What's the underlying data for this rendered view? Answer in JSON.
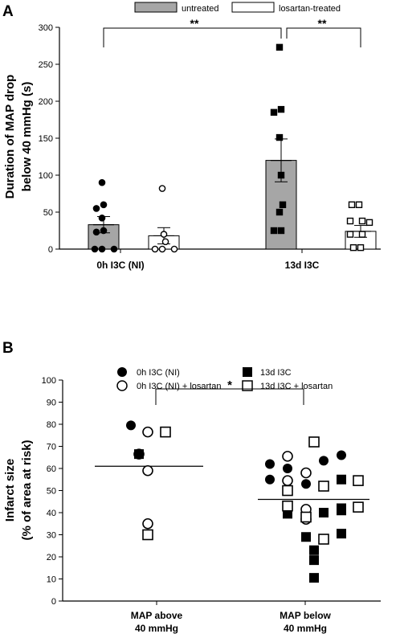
{
  "panel_a": {
    "panel_label": "A",
    "legend": {
      "untreated": "untreated",
      "losartan": "losartan-treated"
    },
    "sig_markers": [
      "**",
      "**"
    ],
    "chart_data": {
      "type": "bar",
      "ylabel_line1": "Duration of MAP drop",
      "ylabel_line2": "below 40 mmHg (s)",
      "ylim": [
        0,
        300
      ],
      "yticks": [
        "0",
        "50",
        "100",
        "150",
        "200",
        "250",
        "300"
      ],
      "group_labels": [
        "0h I3C (NI)",
        "13d I3C"
      ],
      "colors": {
        "untreated": "#a6a6a6",
        "losartan": "#ffffff"
      },
      "series": [
        {
          "name": "untreated",
          "means": [
            33,
            120
          ],
          "errors": [
            11,
            29
          ],
          "points": [
            [
              90,
              60,
              55,
              42,
              25,
              23,
              0,
              0,
              0
            ],
            [
              273,
              189,
              185,
              151,
              100,
              60,
              50,
              25,
              25
            ]
          ]
        },
        {
          "name": "losartan-treated",
          "means": [
            18,
            24
          ],
          "errors": [
            11,
            8
          ],
          "points": [
            [
              82,
              20,
              10,
              0,
              0,
              0
            ],
            [
              60,
              60,
              38,
              38,
              36,
              20,
              20,
              2,
              2
            ]
          ]
        }
      ]
    }
  },
  "panel_b": {
    "panel_label": "B",
    "legend": {
      "ni": "0h I3C (NI)",
      "ni_los": "0h I3C (NI) + losartan",
      "d13": "13d I3C",
      "d13_los": "13d I3C + losartan"
    },
    "sig_marker": "*",
    "chart_data": {
      "type": "scatter",
      "ylabel_line1": "Infarct size",
      "ylabel_line2": "(% of area at risk)",
      "ylim": [
        0,
        100
      ],
      "yticks": [
        "0",
        "10",
        "20",
        "30",
        "40",
        "50",
        "60",
        "70",
        "80",
        "90",
        "100"
      ],
      "categories": [
        {
          "line1": "MAP above",
          "line2": "40 mmHg"
        },
        {
          "line1": "MAP below",
          "line2": "40 mmHg"
        }
      ],
      "means": [
        61,
        46
      ],
      "groups": {
        "ni": [
          [
            79.5
          ],
          [
            62,
            60,
            55,
            53,
            63.5,
            66
          ]
        ],
        "ni_los": [
          [
            76.5,
            66.5,
            59,
            35
          ],
          [
            65.5,
            58,
            54.5,
            41.5,
            37
          ]
        ],
        "d13": [
          [
            66.5
          ],
          [
            42,
            39.5,
            40,
            29,
            23,
            18.5,
            10.5,
            55,
            41,
            30.5
          ]
        ],
        "d13_los": [
          [
            76.5,
            30
          ],
          [
            72,
            50,
            43,
            52,
            54.5,
            42.5,
            28,
            38
          ]
        ]
      }
    }
  }
}
